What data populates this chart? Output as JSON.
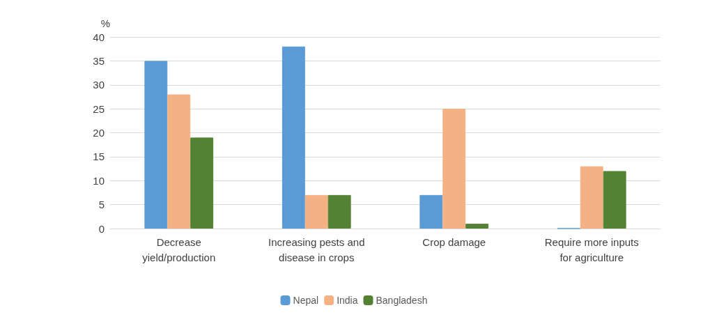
{
  "chart_data": {
    "type": "bar",
    "ylabel": "%",
    "categories": [
      "Decrease yield/production",
      "Increasing pests and disease in crops",
      "Crop damage",
      "Require more inputs for agriculture"
    ],
    "series": [
      {
        "name": "Nepal",
        "color": "#5b9bd5",
        "values": [
          35,
          38,
          7,
          0
        ]
      },
      {
        "name": "India",
        "color": "#f4b183",
        "values": [
          28,
          7,
          25,
          13
        ]
      },
      {
        "name": "Bangladesh",
        "color": "#548235",
        "values": [
          19,
          7,
          1,
          12
        ]
      }
    ],
    "ylim": [
      0,
      40
    ],
    "yticks": [
      0,
      5,
      10,
      15,
      20,
      25,
      30,
      35,
      40
    ],
    "grid": "y",
    "legend": "bottom"
  }
}
